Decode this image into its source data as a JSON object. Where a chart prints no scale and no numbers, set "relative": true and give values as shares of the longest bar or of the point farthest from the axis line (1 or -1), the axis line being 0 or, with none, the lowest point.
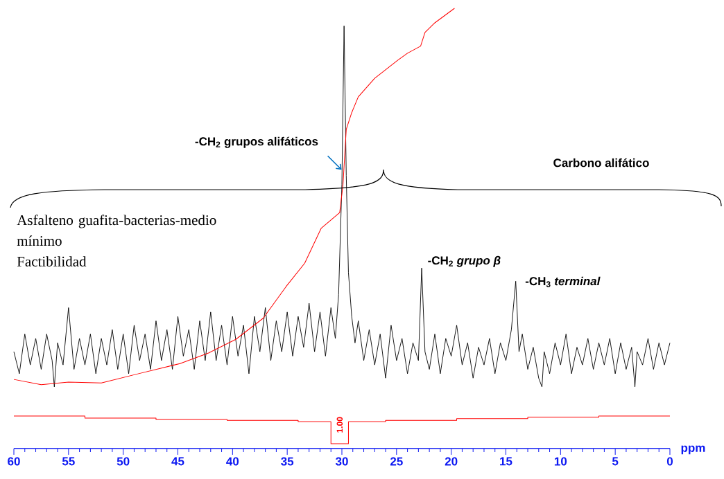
{
  "chart_data": {
    "type": "line",
    "relative": true,
    "xlabel": "ppm",
    "xlim": [
      60,
      0
    ],
    "xticks": [
      60,
      55,
      50,
      45,
      40,
      35,
      30,
      25,
      20,
      15,
      10,
      5,
      0
    ],
    "series": [
      {
        "color": "#000000",
        "x": [
          60,
          59.5,
          59,
          58.5,
          58,
          57.5,
          57,
          56.5,
          56.3,
          56,
          55.5,
          55,
          54.5,
          54,
          53.5,
          53,
          52.5,
          52,
          51.5,
          51,
          50.5,
          50,
          49.5,
          49,
          48.5,
          48,
          47.5,
          47,
          46.5,
          46,
          45.5,
          45,
          44.5,
          44,
          43.5,
          43,
          42.5,
          42,
          41.5,
          41,
          40.5,
          40,
          39.5,
          39,
          38.5,
          38,
          37.5,
          37,
          36.5,
          36,
          35.5,
          35,
          34.5,
          34,
          33.5,
          33,
          32.5,
          32,
          31.5,
          31,
          30.6,
          30.3,
          30.0,
          29.8,
          29.6,
          29.4,
          29.1,
          28.8,
          28.5,
          28,
          27.5,
          27,
          26.5,
          26,
          25.5,
          25,
          24.5,
          24,
          23.5,
          23,
          22.7,
          22.4,
          22,
          21.5,
          21,
          20.5,
          20,
          19.5,
          19,
          18.5,
          18,
          17.5,
          17,
          16.5,
          16,
          15.5,
          15,
          14.5,
          14.1,
          13.8,
          13.5,
          13,
          12.5,
          12,
          11.7,
          11.5,
          11,
          10.5,
          10,
          9.5,
          9,
          8.5,
          8,
          7.5,
          7,
          6.5,
          6,
          5.5,
          5,
          4.5,
          4,
          3.5,
          3.2,
          3,
          2.5,
          2,
          1.5,
          1,
          0.5,
          0
        ],
        "values": [
          0.22,
          0.17,
          0.26,
          0.19,
          0.25,
          0.18,
          0.26,
          0.2,
          0.14,
          0.24,
          0.19,
          0.32,
          0.18,
          0.25,
          0.19,
          0.26,
          0.17,
          0.25,
          0.19,
          0.27,
          0.18,
          0.26,
          0.17,
          0.28,
          0.2,
          0.26,
          0.18,
          0.29,
          0.2,
          0.27,
          0.18,
          0.3,
          0.21,
          0.27,
          0.18,
          0.29,
          0.2,
          0.31,
          0.2,
          0.28,
          0.19,
          0.3,
          0.21,
          0.28,
          0.17,
          0.3,
          0.22,
          0.32,
          0.2,
          0.29,
          0.22,
          0.31,
          0.21,
          0.3,
          0.23,
          0.33,
          0.22,
          0.31,
          0.21,
          0.32,
          0.25,
          0.35,
          0.6,
          0.96,
          0.62,
          0.4,
          0.3,
          0.24,
          0.29,
          0.2,
          0.27,
          0.19,
          0.26,
          0.16,
          0.28,
          0.2,
          0.25,
          0.17,
          0.24,
          0.2,
          0.41,
          0.22,
          0.18,
          0.26,
          0.17,
          0.25,
          0.21,
          0.28,
          0.19,
          0.24,
          0.16,
          0.23,
          0.19,
          0.25,
          0.17,
          0.24,
          0.2,
          0.27,
          0.38,
          0.22,
          0.26,
          0.18,
          0.23,
          0.16,
          0.14,
          0.22,
          0.17,
          0.24,
          0.19,
          0.26,
          0.17,
          0.23,
          0.19,
          0.25,
          0.18,
          0.24,
          0.19,
          0.25,
          0.17,
          0.24,
          0.18,
          0.23,
          0.14,
          0.22,
          0.19,
          0.25,
          0.18,
          0.24,
          0.19,
          0.24
        ]
      },
      {
        "color": "#ff0000",
        "x": [
          60,
          57.5,
          55,
          52,
          48.6,
          44.8,
          42.2,
          39.7,
          37.2,
          35.1,
          33.4,
          31.9,
          30.2,
          29.9,
          29.6,
          29.1,
          28.5,
          27,
          24.9,
          24,
          22.8,
          22.4,
          21.5,
          19.7
        ],
        "values": [
          0.157,
          0.145,
          0.151,
          0.149,
          0.17,
          0.193,
          0.217,
          0.248,
          0.296,
          0.368,
          0.421,
          0.5,
          0.536,
          0.599,
          0.725,
          0.763,
          0.799,
          0.841,
          0.882,
          0.898,
          0.914,
          0.945,
          0.967,
          1
        ]
      },
      {
        "color": "#ff0000",
        "x": [
          60,
          53.5,
          53.5,
          47,
          47,
          40.5,
          40.5,
          34,
          34,
          31,
          31,
          29.4,
          29.4,
          26,
          26,
          19.5,
          19.5,
          13,
          13,
          6.5,
          6.5,
          0
        ],
        "values": [
          0.074,
          0.074,
          0.069,
          0.069,
          0.066,
          0.066,
          0.064,
          0.064,
          0.061,
          0.061,
          0.011,
          0.011,
          0.061,
          0.061,
          0.064,
          0.064,
          0.068,
          0.068,
          0.071,
          0.071,
          0.074,
          0.074
        ]
      }
    ],
    "annotations": [
      {
        "text": "-CH$_{2}$ grupos alifáticos",
        "x": 29.9,
        "y": 0.63
      },
      "Carbono alifático",
      "Asfalteno guafita-bacterias-medio mínimo",
      "Factibilidad",
      {
        "text": "-CH$_{2}$ *grupo β*",
        "x": 22.7,
        "y": 0.41
      },
      {
        "text": "-CH$_{3}$ *terminal*",
        "x": 14.1,
        "y": 0.38
      },
      "1.00"
    ]
  }
}
